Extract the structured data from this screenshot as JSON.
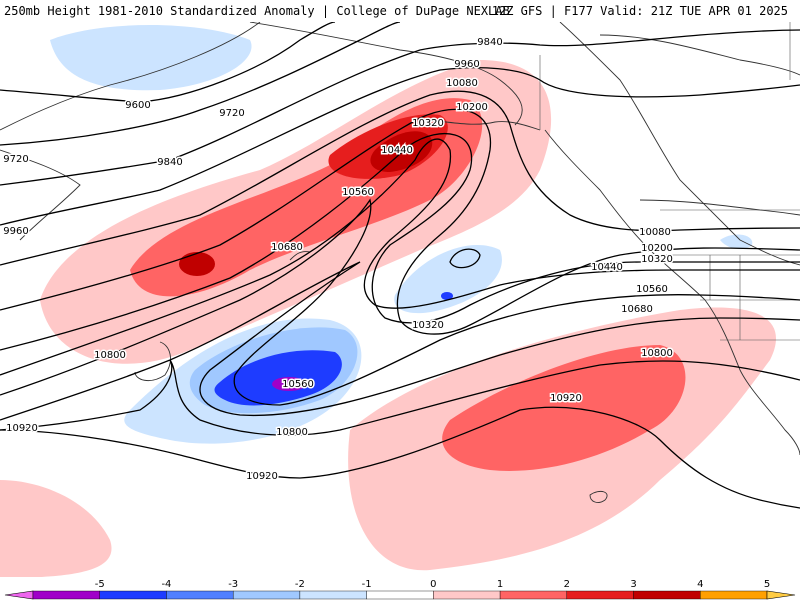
{
  "header": {
    "left": "250mb Height 1981-2010 Standardized Anomaly | College of DuPage NEXLAB",
    "right": "12Z GFS | F177 Valid: 21Z TUE APR 01 2025"
  },
  "contours": [
    {
      "id": "c9600",
      "label": "9600"
    },
    {
      "id": "c9720",
      "label": "9720"
    },
    {
      "id": "c9840",
      "label": "9840"
    },
    {
      "id": "c9960",
      "label": "9960"
    },
    {
      "id": "c10080",
      "label": "10080"
    },
    {
      "id": "c10200",
      "label": "10200"
    },
    {
      "id": "c10320",
      "label": "10320"
    },
    {
      "id": "c10440",
      "label": "10440"
    },
    {
      "id": "c10560",
      "label": "10560"
    },
    {
      "id": "c10680",
      "label": "10680"
    },
    {
      "id": "c10800",
      "label": "10800"
    },
    {
      "id": "c10920",
      "label": "10920"
    }
  ],
  "colorbar": {
    "ticks": [
      "-5",
      "-4",
      "-3",
      "-2",
      "-1",
      "0",
      "1",
      "2",
      "3",
      "4",
      "5"
    ],
    "colors": [
      "#ee66ee",
      "#a000c8",
      "#1e3cff",
      "#5080ff",
      "#a0c8ff",
      "#cce4ff",
      "#ffffff",
      "#ffc8c8",
      "#ff6464",
      "#e61e1e",
      "#c00000",
      "#ffa000",
      "#ffcc44"
    ]
  }
}
